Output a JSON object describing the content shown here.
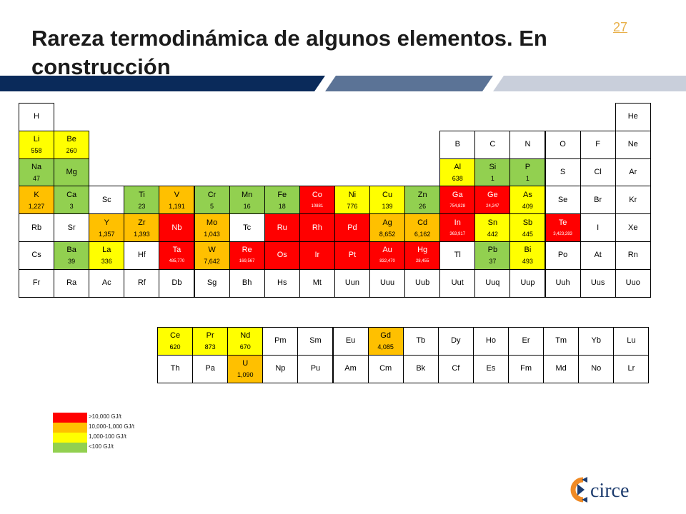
{
  "header": {
    "title": "Rareza termodinámica de algunos elementos. En construcción",
    "slide_number": "27"
  },
  "colors": {
    "red": "#ff0000",
    "orange": "#ffc000",
    "yellow": "#ffff00",
    "green": "#92d050",
    "banner_dark": "#0a2a5a",
    "banner_mid": "#5b7396",
    "banner_light": "#c9cfdb",
    "logo_orange": "#f08a24",
    "logo_blue": "#1d3c6e"
  },
  "periodic_table": [
    {
      "symbol": "H",
      "value": "",
      "color": "white",
      "row": 0,
      "col": 0
    },
    {
      "symbol": "He",
      "value": "",
      "color": "white",
      "row": 0,
      "col": 17
    },
    {
      "symbol": "Li",
      "value": "558",
      "color": "yellow",
      "row": 1,
      "col": 0
    },
    {
      "symbol": "Be",
      "value": "260",
      "color": "yellow",
      "row": 1,
      "col": 1
    },
    {
      "symbol": "B",
      "value": "",
      "color": "white",
      "row": 1,
      "col": 12
    },
    {
      "symbol": "C",
      "value": "",
      "color": "white",
      "row": 1,
      "col": 13
    },
    {
      "symbol": "N",
      "value": "",
      "color": "white",
      "row": 1,
      "col": 14
    },
    {
      "symbol": "O",
      "value": "",
      "color": "white",
      "row": 1,
      "col": 15
    },
    {
      "symbol": "F",
      "value": "",
      "color": "white",
      "row": 1,
      "col": 16
    },
    {
      "symbol": "Ne",
      "value": "",
      "color": "white",
      "row": 1,
      "col": 17
    },
    {
      "symbol": "Na",
      "value": "47",
      "color": "green",
      "row": 2,
      "col": 0
    },
    {
      "symbol": "Mg",
      "value": "",
      "color": "green",
      "row": 2,
      "col": 1
    },
    {
      "symbol": "Al",
      "value": "638",
      "color": "yellow",
      "row": 2,
      "col": 12
    },
    {
      "symbol": "Si",
      "value": "1",
      "color": "green",
      "row": 2,
      "col": 13
    },
    {
      "symbol": "P",
      "value": "1",
      "color": "green",
      "row": 2,
      "col": 14
    },
    {
      "symbol": "S",
      "value": "",
      "color": "white",
      "row": 2,
      "col": 15
    },
    {
      "symbol": "Cl",
      "value": "",
      "color": "white",
      "row": 2,
      "col": 16
    },
    {
      "symbol": "Ar",
      "value": "",
      "color": "white",
      "row": 2,
      "col": 17
    },
    {
      "symbol": "K",
      "value": "1,227",
      "color": "orange",
      "row": 3,
      "col": 0
    },
    {
      "symbol": "Ca",
      "value": "3",
      "color": "green",
      "row": 3,
      "col": 1
    },
    {
      "symbol": "Sc",
      "value": "",
      "color": "white",
      "row": 3,
      "col": 2
    },
    {
      "symbol": "Ti",
      "value": "23",
      "color": "green",
      "row": 3,
      "col": 3
    },
    {
      "symbol": "V",
      "value": "1,191",
      "color": "orange",
      "row": 3,
      "col": 4
    },
    {
      "symbol": "Cr",
      "value": "5",
      "color": "green",
      "row": 3,
      "col": 5
    },
    {
      "symbol": "Mn",
      "value": "16",
      "color": "green",
      "row": 3,
      "col": 6
    },
    {
      "symbol": "Fe",
      "value": "18",
      "color": "green",
      "row": 3,
      "col": 7
    },
    {
      "symbol": "Co",
      "value": "10881",
      "color": "red",
      "row": 3,
      "col": 8,
      "tiny": true
    },
    {
      "symbol": "Ni",
      "value": "776",
      "color": "yellow",
      "row": 3,
      "col": 9
    },
    {
      "symbol": "Cu",
      "value": "139",
      "color": "yellow",
      "row": 3,
      "col": 10
    },
    {
      "symbol": "Zn",
      "value": "26",
      "color": "green",
      "row": 3,
      "col": 11
    },
    {
      "symbol": "Ga",
      "value": "754,828",
      "color": "red",
      "row": 3,
      "col": 12,
      "tiny": true
    },
    {
      "symbol": "Ge",
      "value": "24,247",
      "color": "red",
      "row": 3,
      "col": 13,
      "tiny": true
    },
    {
      "symbol": "As",
      "value": "409",
      "color": "yellow",
      "row": 3,
      "col": 14
    },
    {
      "symbol": "Se",
      "value": "",
      "color": "white",
      "row": 3,
      "col": 15
    },
    {
      "symbol": "Br",
      "value": "",
      "color": "white",
      "row": 3,
      "col": 16
    },
    {
      "symbol": "Kr",
      "value": "",
      "color": "white",
      "row": 3,
      "col": 17
    },
    {
      "symbol": "Rb",
      "value": "",
      "color": "white",
      "row": 4,
      "col": 0
    },
    {
      "symbol": "Sr",
      "value": "",
      "color": "white",
      "row": 4,
      "col": 1
    },
    {
      "symbol": "Y",
      "value": "1,357",
      "color": "orange",
      "row": 4,
      "col": 2
    },
    {
      "symbol": "Zr",
      "value": "1,393",
      "color": "orange",
      "row": 4,
      "col": 3
    },
    {
      "symbol": "Nb",
      "value": "",
      "color": "red",
      "row": 4,
      "col": 4
    },
    {
      "symbol": "Mo",
      "value": "1,043",
      "color": "orange",
      "row": 4,
      "col": 5
    },
    {
      "symbol": "Tc",
      "value": "",
      "color": "white",
      "row": 4,
      "col": 6
    },
    {
      "symbol": "Ru",
      "value": "",
      "color": "red",
      "row": 4,
      "col": 7
    },
    {
      "symbol": "Rh",
      "value": "",
      "color": "red",
      "row": 4,
      "col": 8
    },
    {
      "symbol": "Pd",
      "value": "",
      "color": "red",
      "row": 4,
      "col": 9
    },
    {
      "symbol": "Ag",
      "value": "8,652",
      "color": "orange",
      "row": 4,
      "col": 10
    },
    {
      "symbol": "Cd",
      "value": "6,162",
      "color": "orange",
      "row": 4,
      "col": 11
    },
    {
      "symbol": "In",
      "value": "363,917",
      "color": "red",
      "row": 4,
      "col": 12,
      "tiny": true
    },
    {
      "symbol": "Sn",
      "value": "442",
      "color": "yellow",
      "row": 4,
      "col": 13
    },
    {
      "symbol": "Sb",
      "value": "445",
      "color": "yellow",
      "row": 4,
      "col": 14
    },
    {
      "symbol": "Te",
      "value": "3,423,283",
      "color": "red",
      "row": 4,
      "col": 15,
      "tiny": true
    },
    {
      "symbol": "I",
      "value": "",
      "color": "white",
      "row": 4,
      "col": 16
    },
    {
      "symbol": "Xe",
      "value": "",
      "color": "white",
      "row": 4,
      "col": 17
    },
    {
      "symbol": "Cs",
      "value": "",
      "color": "white",
      "row": 5,
      "col": 0
    },
    {
      "symbol": "Ba",
      "value": "39",
      "color": "green",
      "row": 5,
      "col": 1
    },
    {
      "symbol": "La",
      "value": "336",
      "color": "yellow",
      "row": 5,
      "col": 2
    },
    {
      "symbol": "Hf",
      "value": "",
      "color": "white",
      "row": 5,
      "col": 3
    },
    {
      "symbol": "Ta",
      "value": "485,770",
      "color": "red",
      "row": 5,
      "col": 4,
      "tiny": true
    },
    {
      "symbol": "W",
      "value": "7,642",
      "color": "orange",
      "row": 5,
      "col": 5
    },
    {
      "symbol": "Re",
      "value": "169,567",
      "color": "red",
      "row": 5,
      "col": 6,
      "tiny": true
    },
    {
      "symbol": "Os",
      "value": "",
      "color": "red",
      "row": 5,
      "col": 7
    },
    {
      "symbol": "Ir",
      "value": "",
      "color": "red",
      "row": 5,
      "col": 8
    },
    {
      "symbol": "Pt",
      "value": "",
      "color": "red",
      "row": 5,
      "col": 9
    },
    {
      "symbol": "Au",
      "value": "832,470",
      "color": "red",
      "row": 5,
      "col": 10,
      "tiny": true
    },
    {
      "symbol": "Hg",
      "value": "28,455",
      "color": "red",
      "row": 5,
      "col": 11,
      "tiny": true
    },
    {
      "symbol": "Tl",
      "value": "",
      "color": "white",
      "row": 5,
      "col": 12
    },
    {
      "symbol": "Pb",
      "value": "37",
      "color": "green",
      "row": 5,
      "col": 13
    },
    {
      "symbol": "Bi",
      "value": "493",
      "color": "yellow",
      "row": 5,
      "col": 14
    },
    {
      "symbol": "Po",
      "value": "",
      "color": "white",
      "row": 5,
      "col": 15
    },
    {
      "symbol": "At",
      "value": "",
      "color": "white",
      "row": 5,
      "col": 16
    },
    {
      "symbol": "Rn",
      "value": "",
      "color": "white",
      "row": 5,
      "col": 17
    },
    {
      "symbol": "Fr",
      "value": "",
      "color": "white",
      "row": 6,
      "col": 0
    },
    {
      "symbol": "Ra",
      "value": "",
      "color": "white",
      "row": 6,
      "col": 1
    },
    {
      "symbol": "Ac",
      "value": "",
      "color": "white",
      "row": 6,
      "col": 2
    },
    {
      "symbol": "Rf",
      "value": "",
      "color": "white",
      "row": 6,
      "col": 3
    },
    {
      "symbol": "Db",
      "value": "",
      "color": "white",
      "row": 6,
      "col": 4
    },
    {
      "symbol": "Sg",
      "value": "",
      "color": "white",
      "row": 6,
      "col": 5
    },
    {
      "symbol": "Bh",
      "value": "",
      "color": "white",
      "row": 6,
      "col": 6
    },
    {
      "symbol": "Hs",
      "value": "",
      "color": "white",
      "row": 6,
      "col": 7
    },
    {
      "symbol": "Mt",
      "value": "",
      "color": "white",
      "row": 6,
      "col": 8
    },
    {
      "symbol": "Uun",
      "value": "",
      "color": "white",
      "row": 6,
      "col": 9
    },
    {
      "symbol": "Uuu",
      "value": "",
      "color": "white",
      "row": 6,
      "col": 10
    },
    {
      "symbol": "Uub",
      "value": "",
      "color": "white",
      "row": 6,
      "col": 11
    },
    {
      "symbol": "Uut",
      "value": "",
      "color": "white",
      "row": 6,
      "col": 12
    },
    {
      "symbol": "Uuq",
      "value": "",
      "color": "white",
      "row": 6,
      "col": 13
    },
    {
      "symbol": "Uup",
      "value": "",
      "color": "white",
      "row": 6,
      "col": 14
    },
    {
      "symbol": "Uuh",
      "value": "",
      "color": "white",
      "row": 6,
      "col": 15
    },
    {
      "symbol": "Uus",
      "value": "",
      "color": "white",
      "row": 6,
      "col": 16
    },
    {
      "symbol": "Uuo",
      "value": "",
      "color": "white",
      "row": 6,
      "col": 17
    }
  ],
  "f_block": [
    {
      "symbol": "Ce",
      "value": "620",
      "color": "yellow",
      "row": 0,
      "col": 0
    },
    {
      "symbol": "Pr",
      "value": "873",
      "color": "yellow",
      "row": 0,
      "col": 1
    },
    {
      "symbol": "Nd",
      "value": "670",
      "color": "yellow",
      "row": 0,
      "col": 2
    },
    {
      "symbol": "Pm",
      "value": "",
      "color": "white",
      "row": 0,
      "col": 3
    },
    {
      "symbol": "Sm",
      "value": "",
      "color": "white",
      "row": 0,
      "col": 4
    },
    {
      "symbol": "Eu",
      "value": "",
      "color": "white",
      "row": 0,
      "col": 5
    },
    {
      "symbol": "Gd",
      "value": "4,085",
      "color": "orange",
      "row": 0,
      "col": 6
    },
    {
      "symbol": "Tb",
      "value": "",
      "color": "white",
      "row": 0,
      "col": 7
    },
    {
      "symbol": "Dy",
      "value": "",
      "color": "white",
      "row": 0,
      "col": 8
    },
    {
      "symbol": "Ho",
      "value": "",
      "color": "white",
      "row": 0,
      "col": 9
    },
    {
      "symbol": "Er",
      "value": "",
      "color": "white",
      "row": 0,
      "col": 10
    },
    {
      "symbol": "Tm",
      "value": "",
      "color": "white",
      "row": 0,
      "col": 11
    },
    {
      "symbol": "Yb",
      "value": "",
      "color": "white",
      "row": 0,
      "col": 12
    },
    {
      "symbol": "Lu",
      "value": "",
      "color": "white",
      "row": 0,
      "col": 13
    },
    {
      "symbol": "Th",
      "value": "",
      "color": "white",
      "row": 1,
      "col": 0
    },
    {
      "symbol": "Pa",
      "value": "",
      "color": "white",
      "row": 1,
      "col": 1
    },
    {
      "symbol": "U",
      "value": "1,090",
      "color": "orange",
      "row": 1,
      "col": 2
    },
    {
      "symbol": "Np",
      "value": "",
      "color": "white",
      "row": 1,
      "col": 3
    },
    {
      "symbol": "Pu",
      "value": "",
      "color": "white",
      "row": 1,
      "col": 4
    },
    {
      "symbol": "Am",
      "value": "",
      "color": "white",
      "row": 1,
      "col": 5
    },
    {
      "symbol": "Cm",
      "value": "",
      "color": "white",
      "row": 1,
      "col": 6
    },
    {
      "symbol": "Bk",
      "value": "",
      "color": "white",
      "row": 1,
      "col": 7
    },
    {
      "symbol": "Cf",
      "value": "",
      "color": "white",
      "row": 1,
      "col": 8
    },
    {
      "symbol": "Es",
      "value": "",
      "color": "white",
      "row": 1,
      "col": 9
    },
    {
      "symbol": "Fm",
      "value": "",
      "color": "white",
      "row": 1,
      "col": 10
    },
    {
      "symbol": "Md",
      "value": "",
      "color": "white",
      "row": 1,
      "col": 11
    },
    {
      "symbol": "No",
      "value": "",
      "color": "white",
      "row": 1,
      "col": 12
    },
    {
      "symbol": "Lr",
      "value": "",
      "color": "white",
      "row": 1,
      "col": 13
    }
  ],
  "legend": [
    {
      "label": ">10,000 GJ/t",
      "color": "red"
    },
    {
      "label": "10,000-1,000 GJ/t",
      "color": "orange"
    },
    {
      "label": "1,000-100 GJ/t",
      "color": "yellow"
    },
    {
      "label": "<100 GJ/t",
      "color": "green"
    }
  ],
  "logo": {
    "text": "circe",
    "icon": "circe-logo-icon"
  }
}
